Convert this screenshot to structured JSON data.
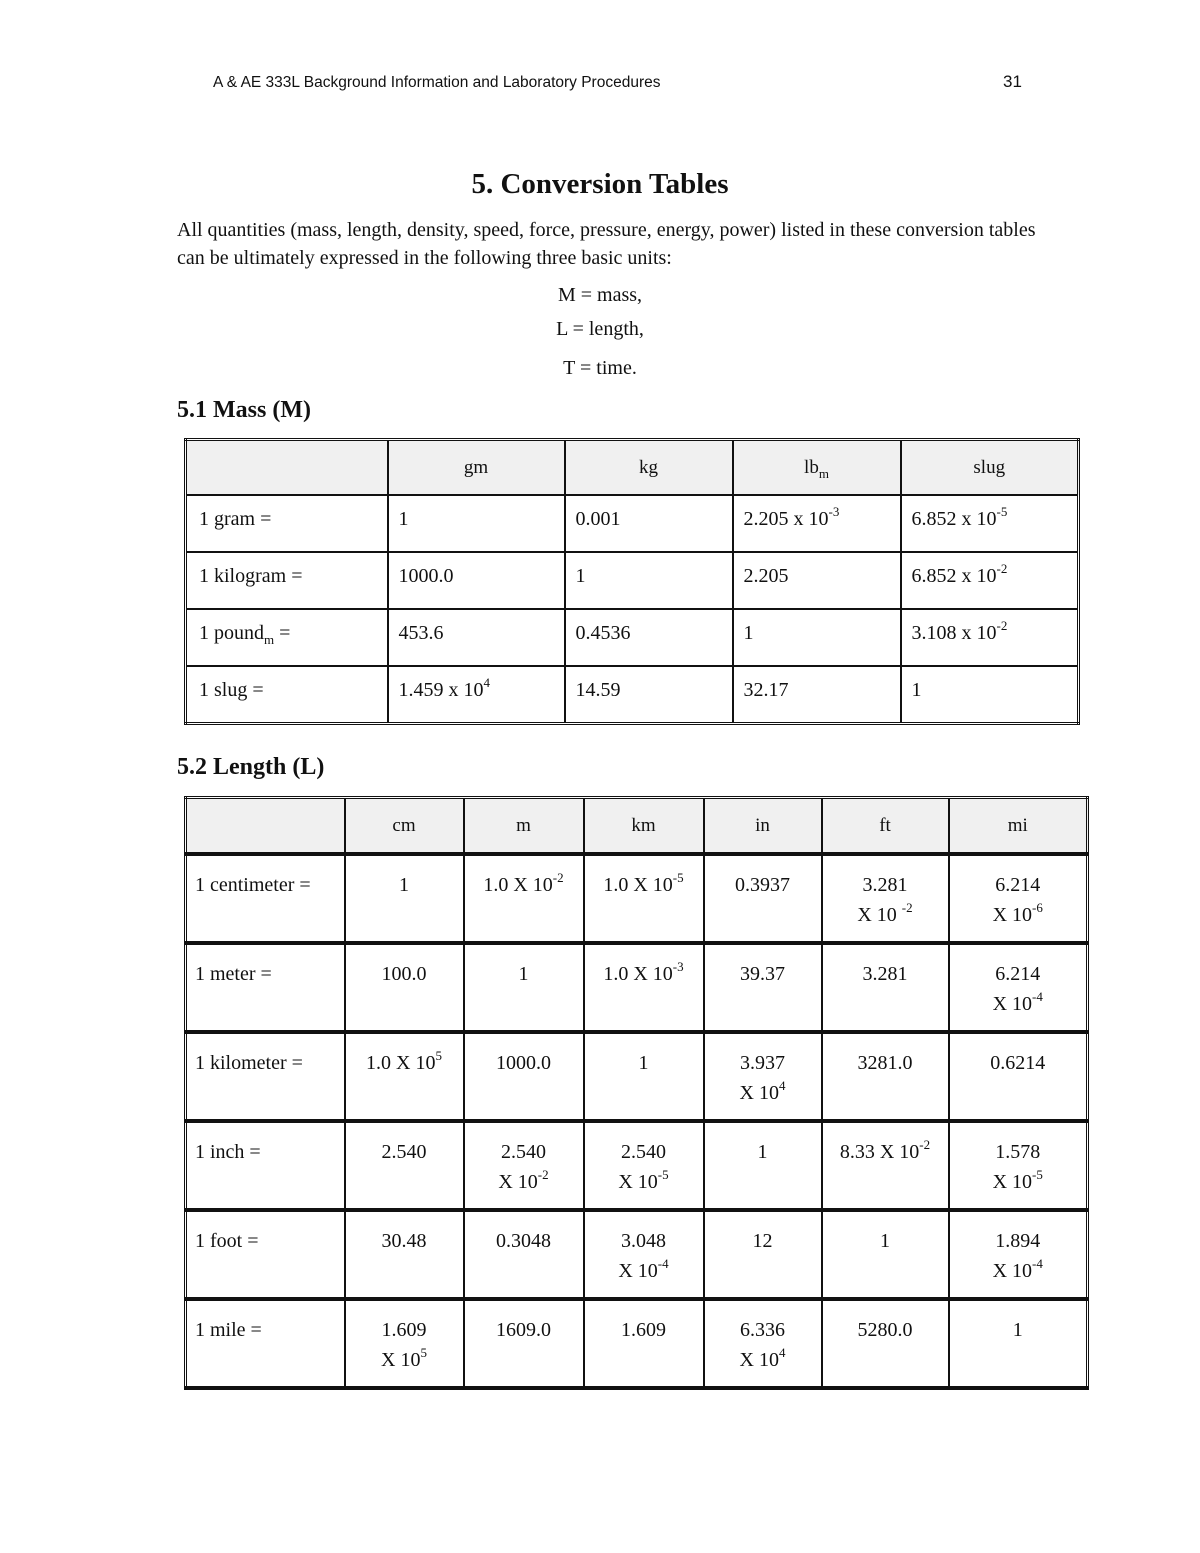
{
  "header": {
    "running_title": "A & AE 333L Background Information and Laboratory Procedures",
    "page_number": "31"
  },
  "section": {
    "title": "5.  Conversion Tables",
    "intro": "All quantities (mass, length, density, speed, force, pressure, energy, power) listed in these conversion tables can be ultimately expressed in the following three basic units:",
    "basic_units": [
      "M = mass,",
      "L = length,",
      "T = time."
    ]
  },
  "mass": {
    "heading": "5.1  Mass (M)",
    "columns": [
      [
        {
          "t": ""
        }
      ],
      [
        {
          "t": "gm"
        }
      ],
      [
        {
          "t": "kg"
        }
      ],
      [
        {
          "t": "lb",
          "sub": "m"
        }
      ],
      [
        {
          "t": "slug"
        }
      ]
    ],
    "rows": [
      [
        [
          {
            "t": "1 gram ="
          }
        ],
        [
          {
            "t": "1"
          }
        ],
        [
          {
            "t": "0.001"
          }
        ],
        [
          {
            "t": "2.205 x 10",
            "sup": "-3"
          }
        ],
        [
          {
            "t": "6.852 x 10",
            "sup": "-5"
          }
        ]
      ],
      [
        [
          {
            "t": "1 kilogram ="
          }
        ],
        [
          {
            "t": "1000.0"
          }
        ],
        [
          {
            "t": "1"
          }
        ],
        [
          {
            "t": "2.205"
          }
        ],
        [
          {
            "t": "6.852 x 10",
            "sup": "-2"
          }
        ]
      ],
      [
        [
          {
            "t": "1 pound",
            "sub": "m",
            "after": " ="
          }
        ],
        [
          {
            "t": "453.6"
          }
        ],
        [
          {
            "t": "0.4536"
          }
        ],
        [
          {
            "t": "1"
          }
        ],
        [
          {
            "t": "3.108 x 10",
            "sup": "-2"
          }
        ]
      ],
      [
        [
          {
            "t": "1 slug ="
          }
        ],
        [
          {
            "t": "1.459 x 10",
            "sup": "4"
          }
        ],
        [
          {
            "t": "14.59"
          }
        ],
        [
          {
            "t": "32.17"
          }
        ],
        [
          {
            "t": "1"
          }
        ]
      ]
    ]
  },
  "length": {
    "heading": "5.2  Length (L)",
    "columns": [
      [
        {
          "t": ""
        }
      ],
      [
        {
          "t": "cm"
        }
      ],
      [
        {
          "t": "m"
        }
      ],
      [
        {
          "t": "km"
        }
      ],
      [
        {
          "t": "in"
        }
      ],
      [
        {
          "t": "ft"
        }
      ],
      [
        {
          "t": "mi"
        }
      ]
    ],
    "rows": [
      [
        [
          {
            "t": "1 centimeter ="
          }
        ],
        [
          {
            "t": "1"
          }
        ],
        [
          {
            "t": "1.0 X 10",
            "sup": "-2"
          }
        ],
        [
          {
            "t": "1.0 X 10",
            "sup": "-5"
          }
        ],
        [
          {
            "t": "0.3937"
          }
        ],
        [
          {
            "t": "3.281"
          },
          {
            "t": "X 10 ",
            "sup": "-2"
          }
        ],
        [
          {
            "t": "6.214"
          },
          {
            "t": "X 10",
            "sup": "-6"
          }
        ]
      ],
      [
        [
          {
            "t": "1 meter ="
          }
        ],
        [
          {
            "t": "100.0"
          }
        ],
        [
          {
            "t": "1"
          }
        ],
        [
          {
            "t": "1.0 X 10",
            "sup": "-3"
          }
        ],
        [
          {
            "t": "39.37"
          }
        ],
        [
          {
            "t": "3.281"
          }
        ],
        [
          {
            "t": "6.214"
          },
          {
            "t": "X 10",
            "sup": "-4"
          }
        ]
      ],
      [
        [
          {
            "t": "1 kilometer ="
          }
        ],
        [
          {
            "t": "1.0 X 10",
            "sup": "5"
          }
        ],
        [
          {
            "t": "1000.0"
          }
        ],
        [
          {
            "t": "1"
          }
        ],
        [
          {
            "t": "3.937"
          },
          {
            "t": "X 10",
            "sup": "4"
          }
        ],
        [
          {
            "t": "3281.0"
          }
        ],
        [
          {
            "t": "0.6214"
          }
        ]
      ],
      [
        [
          {
            "t": "1 inch ="
          }
        ],
        [
          {
            "t": "2.540"
          }
        ],
        [
          {
            "t": "2.540"
          },
          {
            "t": "X 10",
            "sup": "-2"
          }
        ],
        [
          {
            "t": "2.540"
          },
          {
            "t": "X 10",
            "sup": "-5"
          }
        ],
        [
          {
            "t": "1"
          }
        ],
        [
          {
            "t": "8.33 X 10",
            "sup": "-2"
          }
        ],
        [
          {
            "t": "1.578"
          },
          {
            "t": "X 10",
            "sup": "-5"
          }
        ]
      ],
      [
        [
          {
            "t": "1 foot ="
          }
        ],
        [
          {
            "t": "30.48"
          }
        ],
        [
          {
            "t": "0.3048"
          }
        ],
        [
          {
            "t": "3.048"
          },
          {
            "t": "X 10",
            "sup": "-4"
          }
        ],
        [
          {
            "t": "12"
          }
        ],
        [
          {
            "t": "1"
          }
        ],
        [
          {
            "t": "1.894"
          },
          {
            "t": "X 10",
            "sup": "-4"
          }
        ]
      ],
      [
        [
          {
            "t": "1 mile ="
          }
        ],
        [
          {
            "t": "1.609"
          },
          {
            "t": "X 10",
            "sup": "5"
          }
        ],
        [
          {
            "t": "1609.0"
          }
        ],
        [
          {
            "t": "1.609"
          }
        ],
        [
          {
            "t": "6.336"
          },
          {
            "t": "X 10",
            "sup": "4"
          }
        ],
        [
          {
            "t": "5280.0"
          }
        ],
        [
          {
            "t": "1"
          }
        ]
      ]
    ]
  }
}
